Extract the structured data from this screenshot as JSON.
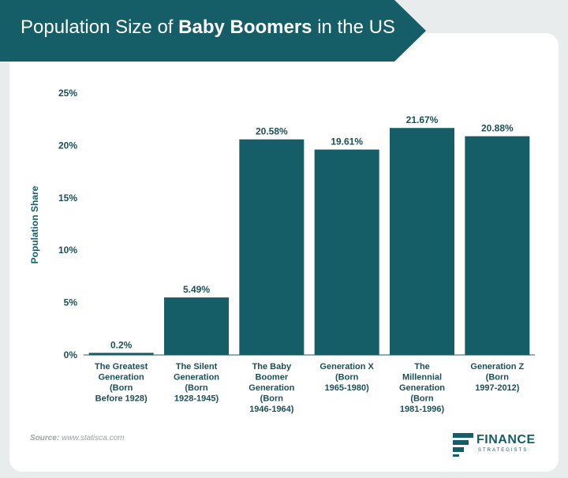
{
  "header": {
    "title_prefix": "Population Size of ",
    "title_bold": "Baby Boomers",
    "title_suffix": " in the US"
  },
  "colors": {
    "bar": "#155e68",
    "accent": "#155e68",
    "text": "#1c4f57"
  },
  "source_label": "Source:",
  "source_url": "www.statisca.com",
  "logo": {
    "name": "FINANCE",
    "sub": "STRATEGISTS",
    "icon": "finance-strategists-logo-icon"
  },
  "chart_data": {
    "type": "bar",
    "title": "Population Size of Baby Boomers in the US",
    "xlabel": "",
    "ylabel": "Population Share",
    "ylim": [
      0,
      25
    ],
    "yticks": [
      0,
      5,
      10,
      15,
      20,
      25
    ],
    "ytick_labels": [
      "0%",
      "5%",
      "10%",
      "15%",
      "20%",
      "25%"
    ],
    "grid": false,
    "categories": [
      "The Greatest Generation (Born Before 1928)",
      "The Silent Generation (Born 1928-1945)",
      "The Baby Boomer Generation (Born 1946-1964)",
      "Generation X (Born 1965-1980)",
      "The Millennial Generation (Born 1981-1996)",
      "Generation Z (Born 1997-2012)"
    ],
    "category_lines": [
      [
        "The Greatest",
        "Generation",
        "(Born",
        "Before 1928)"
      ],
      [
        "The Silent",
        "Generation",
        "(Born",
        "1928-1945)"
      ],
      [
        "The Baby",
        "Boomer",
        "Generation",
        "(Born",
        "1946-1964)"
      ],
      [
        "Generation X",
        "(Born",
        "1965-1980)"
      ],
      [
        "The",
        "Millennial",
        "Generation",
        "(Born",
        "1981-1996)"
      ],
      [
        "Generation Z",
        "(Born",
        "1997-2012)"
      ]
    ],
    "values": [
      0.2,
      5.49,
      20.58,
      19.61,
      21.67,
      20.88
    ],
    "value_labels": [
      "0.2%",
      "5.49%",
      "20.58%",
      "19.61%",
      "21.67%",
      "20.88%"
    ]
  }
}
